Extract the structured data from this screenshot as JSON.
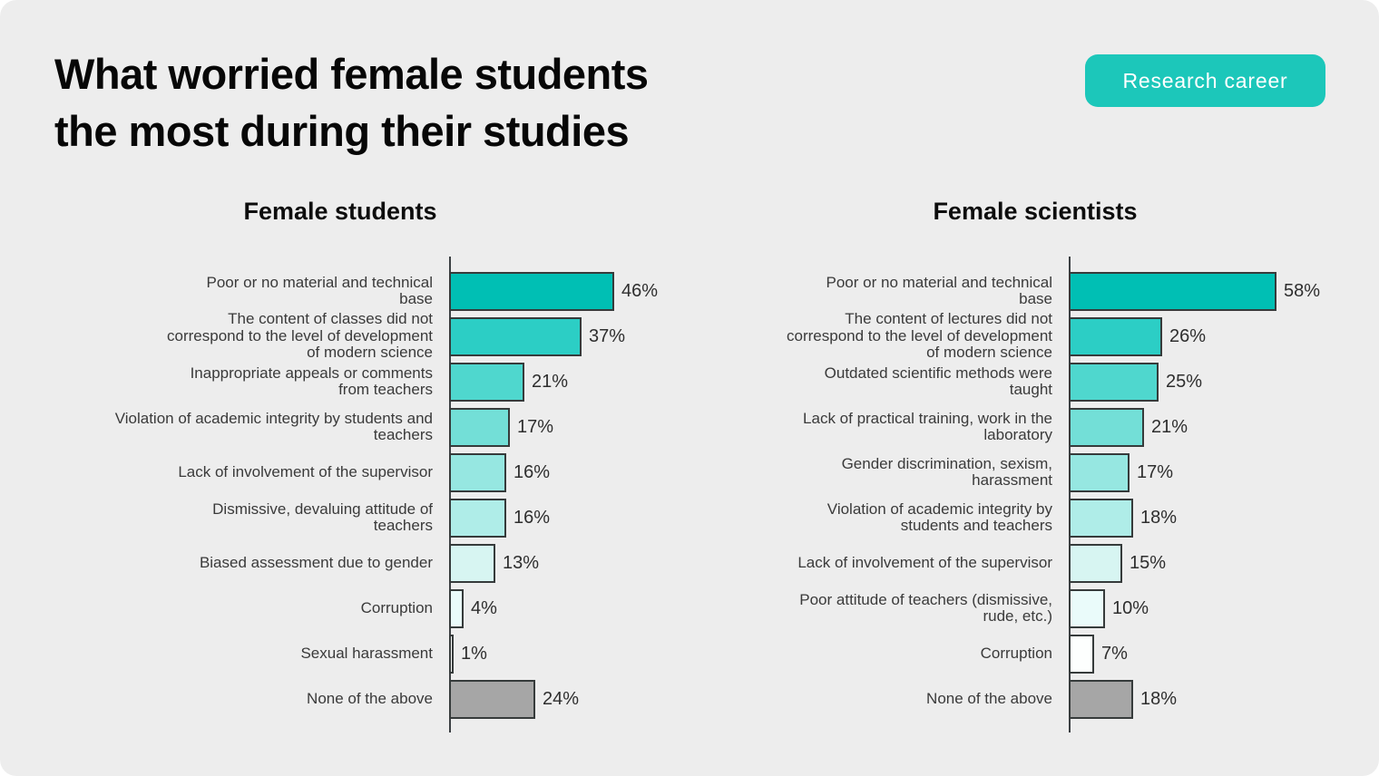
{
  "page": {
    "title_line1": "What worried female students",
    "title_line2": "the most during their studies",
    "badge": "Research career",
    "background_color": "#EDEDED",
    "accent_color": "#1CC7BA"
  },
  "chart_data": [
    {
      "type": "bar",
      "orientation": "horizontal",
      "title": "Female students",
      "unit": "%",
      "xlim": [
        0,
        60
      ],
      "grid": false,
      "legend": "none",
      "categories": [
        "Poor or no material and technical\nbase",
        "The content of classes did not\ncorrespond to the level of development\nof modern science",
        "Inappropriate appeals or comments\nfrom teachers",
        "Violation of academic integrity by students and\nteachers",
        "Lack of involvement of the supervisor",
        "Dismissive, devaluing attitude of\nteachers",
        "Biased assessment due to gender",
        "Corruption",
        "Sexual harassment",
        "None of the above"
      ],
      "values": [
        46,
        37,
        21,
        17,
        16,
        16,
        13,
        4,
        1,
        24
      ],
      "bar_colors": [
        "#00BFB4",
        "#2CCEC5",
        "#4FD7CE",
        "#73DFD7",
        "#96E7E1",
        "#AFEDE8",
        "#D7F5F2",
        "#EAFBFA",
        "#FDFFFE",
        "#A6A6A6"
      ]
    },
    {
      "type": "bar",
      "orientation": "horizontal",
      "title": "Female scientists",
      "unit": "%",
      "xlim": [
        0,
        60
      ],
      "grid": false,
      "legend": "none",
      "categories": [
        "Poor or no material and technical\nbase",
        "The content of lectures did not\ncorrespond to the level of development\nof modern science",
        "Outdated scientific methods were\ntaught",
        "Lack of practical training, work in the\nlaboratory",
        "Gender discrimination, sexism,\nharassment",
        "Violation of academic integrity by\nstudents and teachers",
        "Lack of involvement of the supervisor",
        "Poor attitude of teachers (dismissive,\nrude, etc.)",
        "Corruption",
        "None of the above"
      ],
      "values": [
        58,
        26,
        25,
        21,
        17,
        18,
        15,
        10,
        7,
        18
      ],
      "bar_colors": [
        "#00BFB4",
        "#2CCEC5",
        "#4FD7CE",
        "#73DFD7",
        "#96E7E1",
        "#AFEDE8",
        "#D7F5F2",
        "#EAFBFA",
        "#FDFFFE",
        "#A6A6A6"
      ]
    }
  ]
}
